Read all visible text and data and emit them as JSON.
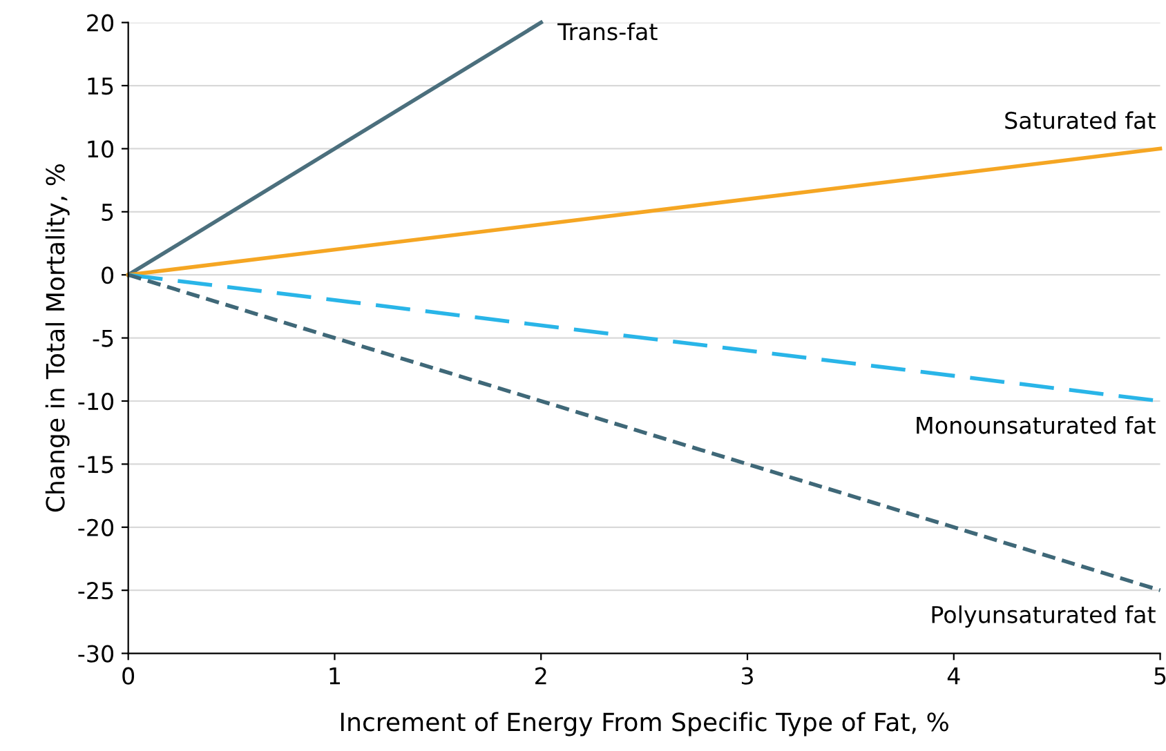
{
  "chart_data": {
    "type": "line",
    "xlabel": "Increment of Energy From Specific Type of Fat, %",
    "ylabel": "Change in Total Mortality, %",
    "xlim": [
      0,
      5
    ],
    "xticks": [
      0,
      1,
      2,
      3,
      4,
      5
    ],
    "ylim": [
      -30,
      20
    ],
    "yticks": [
      -30,
      -25,
      -20,
      -15,
      -10,
      -5,
      0,
      5,
      10,
      15,
      20
    ],
    "grid": "y",
    "legend": false,
    "marker": "none",
    "series": [
      {
        "name": "Trans-fat",
        "color": "#4b6f7d",
        "line_style": "solid",
        "x": [
          0,
          2
        ],
        "values": [
          0,
          20
        ]
      },
      {
        "name": "Saturated fat",
        "color": "#f5a623",
        "line_style": "solid",
        "x": [
          0,
          5
        ],
        "values": [
          0,
          10
        ]
      },
      {
        "name": "Monounsaturated fat",
        "color": "#29b5e8",
        "line_style": "dashed",
        "x": [
          0,
          5
        ],
        "values": [
          0,
          -10
        ]
      },
      {
        "name": "Polyunsaturated fat",
        "color": "#3f6878",
        "line_style": "dotted",
        "x": [
          0,
          5
        ],
        "values": [
          0,
          -25
        ]
      }
    ]
  }
}
